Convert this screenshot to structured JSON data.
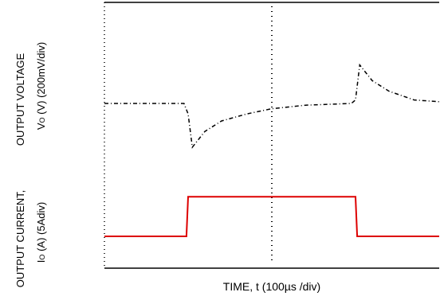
{
  "chart_data": {
    "type": "line",
    "xlabel": "TIME, t (100µs /div)",
    "x_divisions": 4,
    "time_per_div_us": 100,
    "ylabels": [
      {
        "line1": "OUTPUT VOLTAGE",
        "line2_main": "V",
        "line2_sub": "O",
        "line2_rest": " (V) (200mV/div)"
      },
      {
        "line1": "OUTPUT CURRENT,",
        "line2_main": "I",
        "line2_sub": "O",
        "line2_rest": " (A)  (5Adiv)"
      }
    ],
    "grid": "center vertical dotted line",
    "series": [
      {
        "color": "#000000",
        "unit": "V (200mV/div)",
        "points": [
          [
            0,
            0
          ],
          [
            0.9,
            0
          ],
          [
            0.95,
            0
          ],
          [
            1.0,
            -0.3
          ],
          [
            1.05,
            -1.25
          ],
          [
            1.1,
            -1.1
          ],
          [
            1.2,
            -0.8
          ],
          [
            1.4,
            -0.5
          ],
          [
            1.7,
            -0.3
          ],
          [
            2.0,
            -0.15
          ],
          [
            2.4,
            -0.05
          ],
          [
            2.95,
            0
          ],
          [
            3.0,
            0.1
          ],
          [
            3.05,
            1.1
          ],
          [
            3.1,
            0.95
          ],
          [
            3.2,
            0.65
          ],
          [
            3.4,
            0.35
          ],
          [
            3.7,
            0.1
          ],
          [
            4.0,
            0.05
          ]
        ]
      },
      {
        "color": "#dd0000",
        "unit": "A (5A/div)",
        "points": [
          [
            0,
            0
          ],
          [
            0.98,
            0
          ],
          [
            1.0,
            0.7
          ],
          [
            1.3,
            0.7
          ],
          [
            3.0,
            0.7
          ],
          [
            3.02,
            0
          ],
          [
            3.1,
            0
          ],
          [
            3.5,
            0
          ],
          [
            4.0,
            0
          ]
        ]
      }
    ]
  }
}
